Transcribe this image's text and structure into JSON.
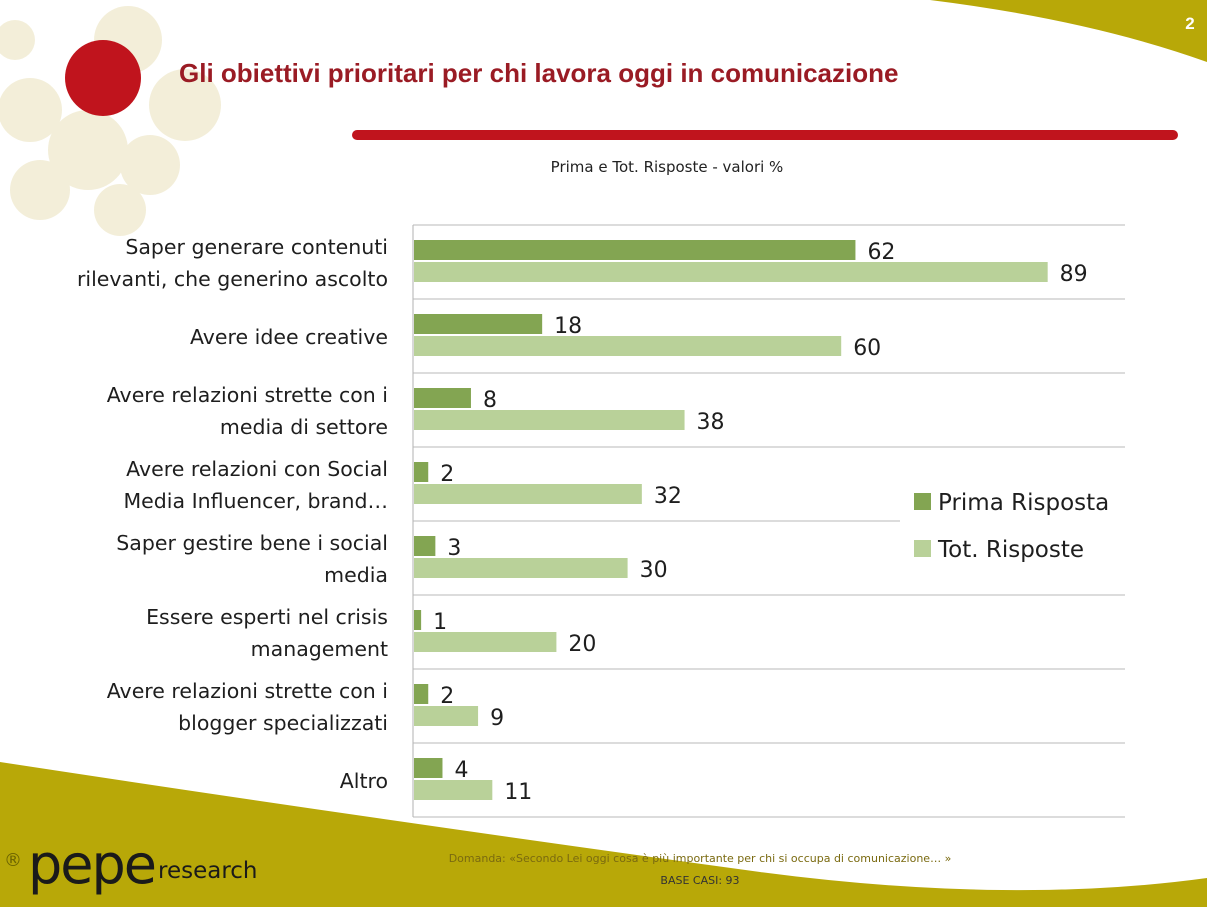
{
  "page": {
    "number": "2",
    "title": "Gli obiettivi prioritari per chi lavora oggi in comunicazione",
    "subtitle": "Prima e Tot. Risposte - valori  %"
  },
  "colors": {
    "title": "#9a1b24",
    "accent_red": "#c0141d",
    "olive": "#b8a808",
    "prima": "#83a552",
    "tot": "#b9d199"
  },
  "chart_data": {
    "type": "bar",
    "orientation": "horizontal",
    "title": "",
    "xlabel": "",
    "ylabel": "",
    "xlim": [
      0,
      100
    ],
    "legend_position": "right",
    "categories": [
      [
        "Saper generare contenuti",
        "rilevanti, che generino ascolto"
      ],
      [
        "Avere idee creative"
      ],
      [
        "Avere relazioni strette con i",
        "media di settore"
      ],
      [
        "Avere relazioni con Social",
        "Media Influencer, brand…"
      ],
      [
        "Saper gestire bene i social",
        "media"
      ],
      [
        "Essere esperti nel crisis",
        "management"
      ],
      [
        "Avere relazioni strette con i",
        "blogger specializzati"
      ],
      [
        "Altro"
      ]
    ],
    "series": [
      {
        "name": "Prima Risposta",
        "color": "#83a552",
        "values": [
          62,
          18,
          8,
          2,
          3,
          1,
          2,
          4
        ]
      },
      {
        "name": "Tot. Risposte",
        "color": "#b9d199",
        "values": [
          89,
          60,
          38,
          32,
          30,
          20,
          9,
          11
        ]
      }
    ]
  },
  "footer": {
    "question": "Domanda: «Secondo Lei oggi cosa è più importante per chi si occupa di comunicazione… »",
    "base": "BASE CASI: 93",
    "logo_reg": "®",
    "logo_main": "pepe",
    "logo_sub": "research"
  }
}
